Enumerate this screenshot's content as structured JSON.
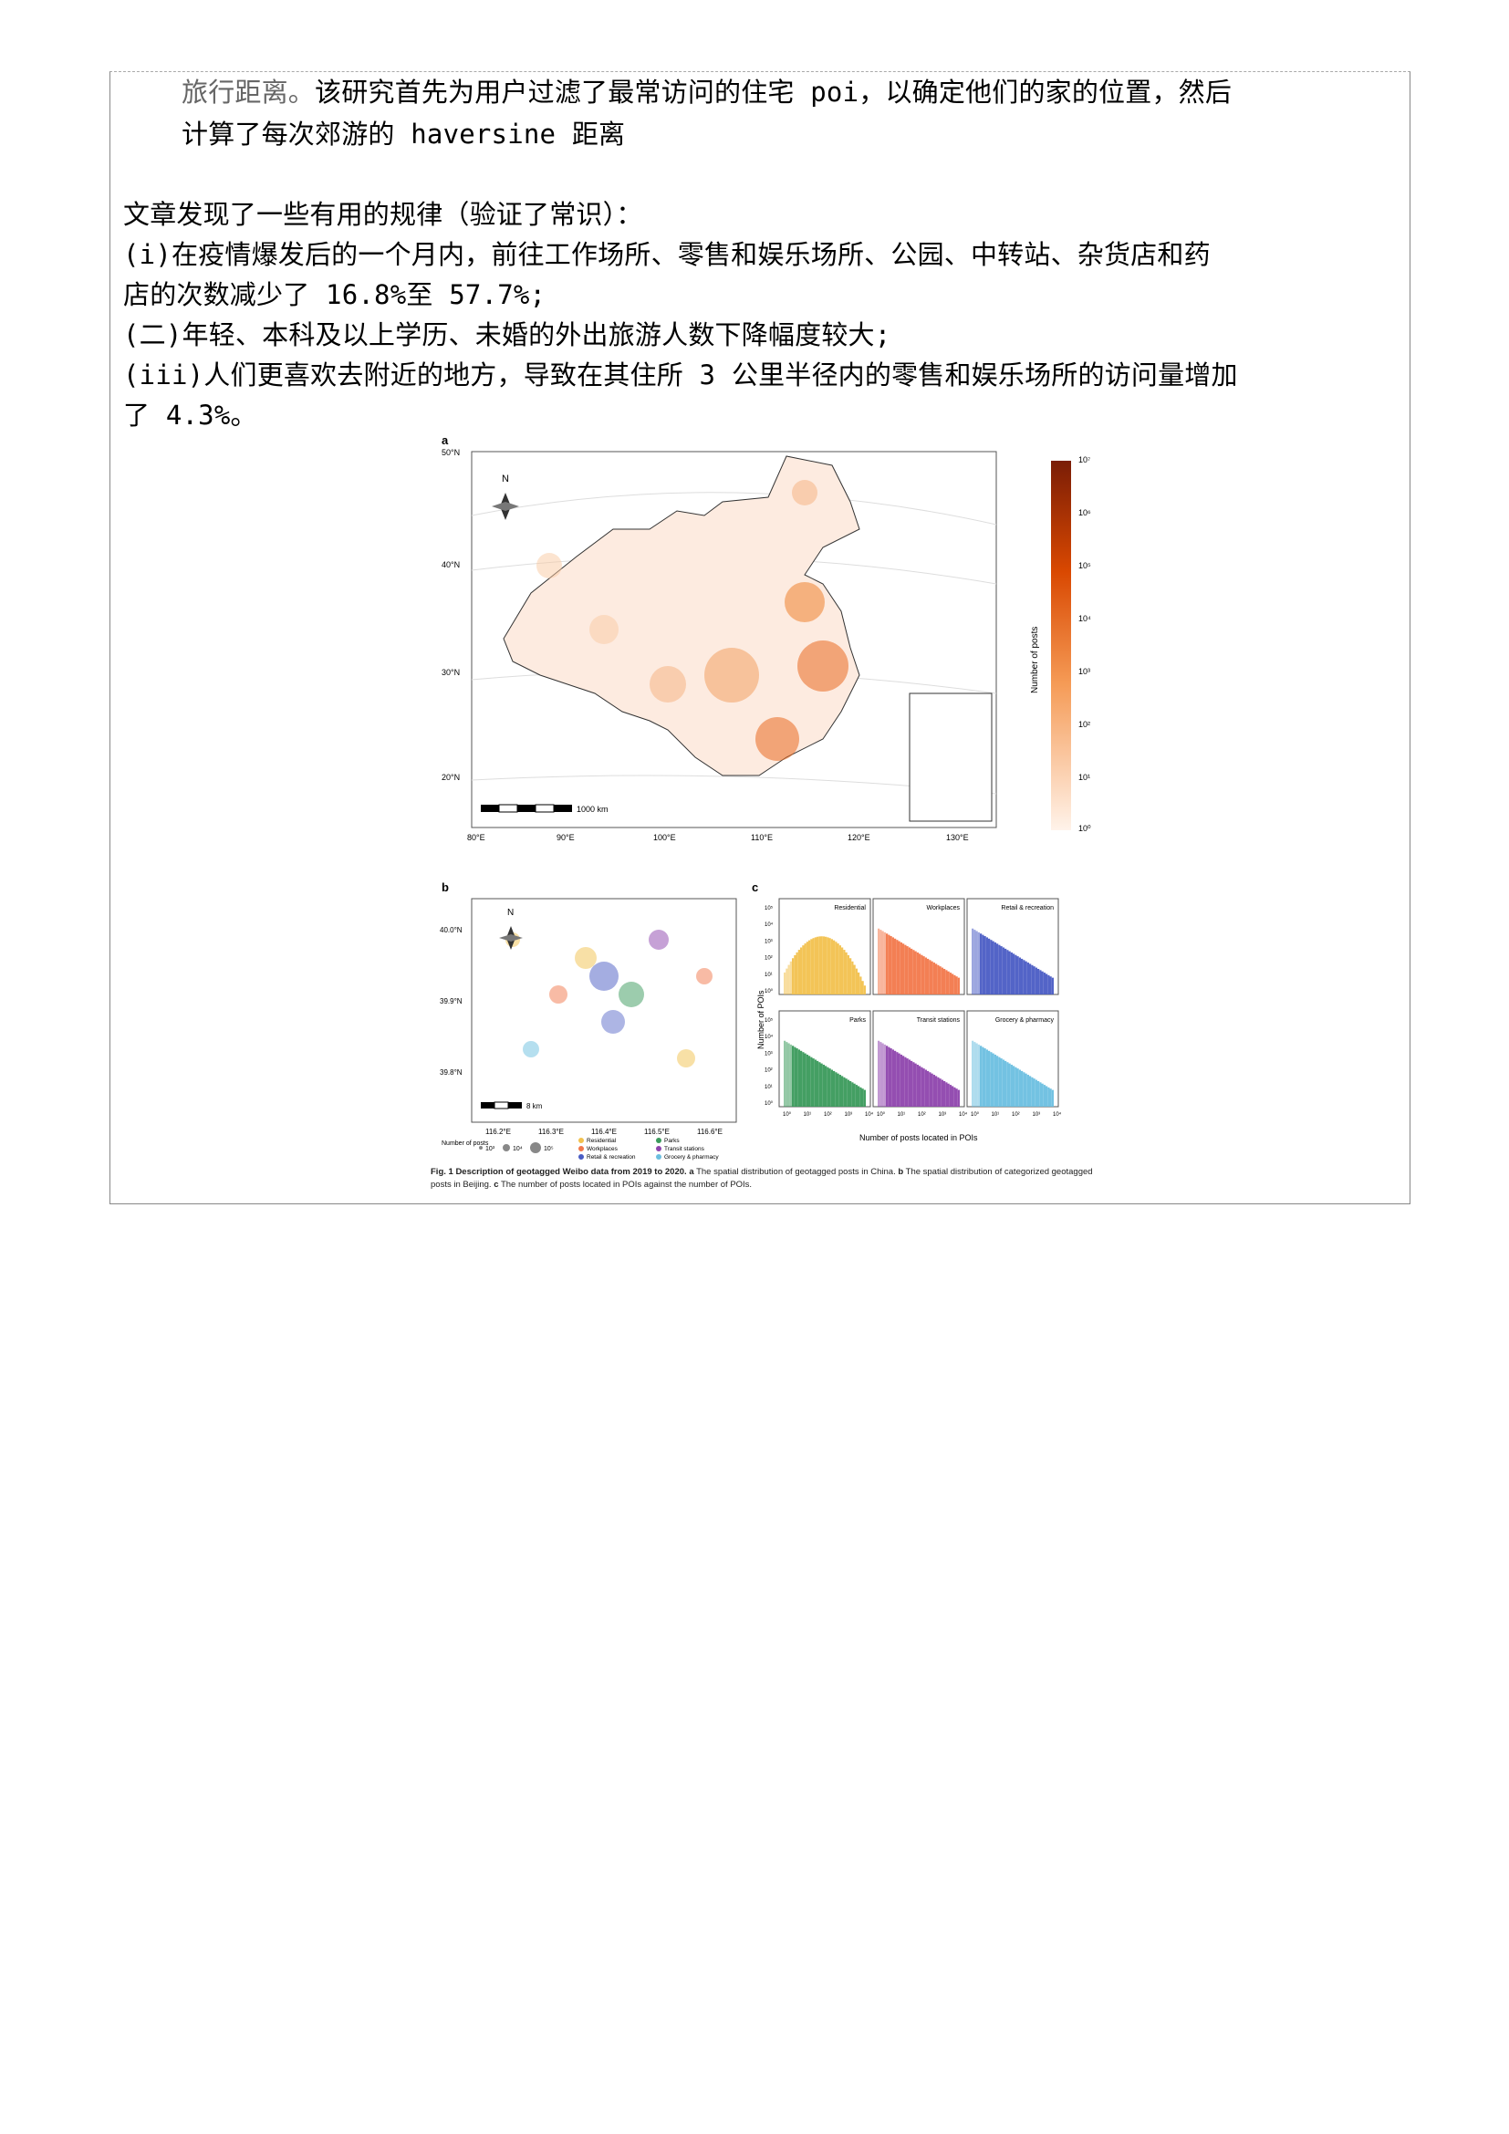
{
  "text": {
    "l1_a": "旅行距离。",
    "l1_b": "该研究首先为用户过滤了最常访问的住宅 poi，以确定他们的家的位置，然后",
    "l2": "计算了每次郊游的 haversine 距离",
    "l3": "文章发现了一些有用的规律（验证了常识）：",
    "l4": "(i)在疫情爆发后的一个月内，前往工作场所、零售和娱乐场所、公园、中转站、杂货店和药",
    "l5": "店的次数减少了 16.8%至 57.7%;",
    "l6": "(二)年轻、本科及以上学历、未婚的外出旅游人数下降幅度较大;",
    "l7": "(iii)人们更喜欢去附近的地方，导致在其住所 3 公里半径内的零售和娱乐场所的访问量增加",
    "l8": "了 4.3%。"
  },
  "figure": {
    "panel_a": {
      "label": "a",
      "lat_labels": [
        "50°N",
        "40°N",
        "30°N",
        "20°N"
      ],
      "lon_labels": [
        "80°E",
        "90°E",
        "100°E",
        "110°E",
        "120°E",
        "130°E"
      ],
      "scale_label": "1000 km",
      "compass": "N",
      "colorbar_title": "Number of posts",
      "colorbar_ticks": [
        "10⁷",
        "10⁶",
        "10⁵",
        "10⁴",
        "10³",
        "10²",
        "10¹",
        "10⁰"
      ]
    },
    "panel_b": {
      "label": "b",
      "lat_labels": [
        "40.0°N",
        "39.9°N",
        "39.8°N"
      ],
      "lon_labels": [
        "116.2°E",
        "116.3°E",
        "116.4°E",
        "116.5°E",
        "116.6°E"
      ],
      "scale_label": "8 km",
      "compass": "N",
      "size_legend_title": "Number of posts",
      "size_legend": [
        "10³",
        "10⁴",
        "10⁵"
      ],
      "category_legend": [
        "Residential",
        "Workplaces",
        "Retail & recreation",
        "Parks",
        "Transit stations",
        "Grocery & pharmacy"
      ]
    },
    "panel_c": {
      "label": "c",
      "ylabel": "Number of POIs",
      "xlabel": "Number of posts located in POIs",
      "yticks": [
        "10⁵",
        "10⁴",
        "10³",
        "10²",
        "10¹",
        "10⁰"
      ],
      "xticks": [
        "10⁰",
        "10¹",
        "10²",
        "10³",
        "10⁴"
      ],
      "panels": [
        {
          "name": "Residential",
          "color": "#f2c14e"
        },
        {
          "name": "Workplaces",
          "color": "#f2784b"
        },
        {
          "name": "Retail & recreation",
          "color": "#4a5cc4"
        },
        {
          "name": "Parks",
          "color": "#3a9a5b"
        },
        {
          "name": "Transit stations",
          "color": "#8e44ad"
        },
        {
          "name": "Grocery & pharmacy",
          "color": "#6bbfe0"
        }
      ]
    },
    "caption_bold": "Fig. 1 Description of geotagged Weibo data from 2019 to 2020.",
    "caption_a_label": "a",
    "caption_a": "The spatial distribution of geotagged posts in China.",
    "caption_b_label": "b",
    "caption_b": "The spatial distribution of categorized geotagged posts in Beijing.",
    "caption_c_label": "c",
    "caption_c": "The number of posts located in POIs against the number of POIs."
  }
}
